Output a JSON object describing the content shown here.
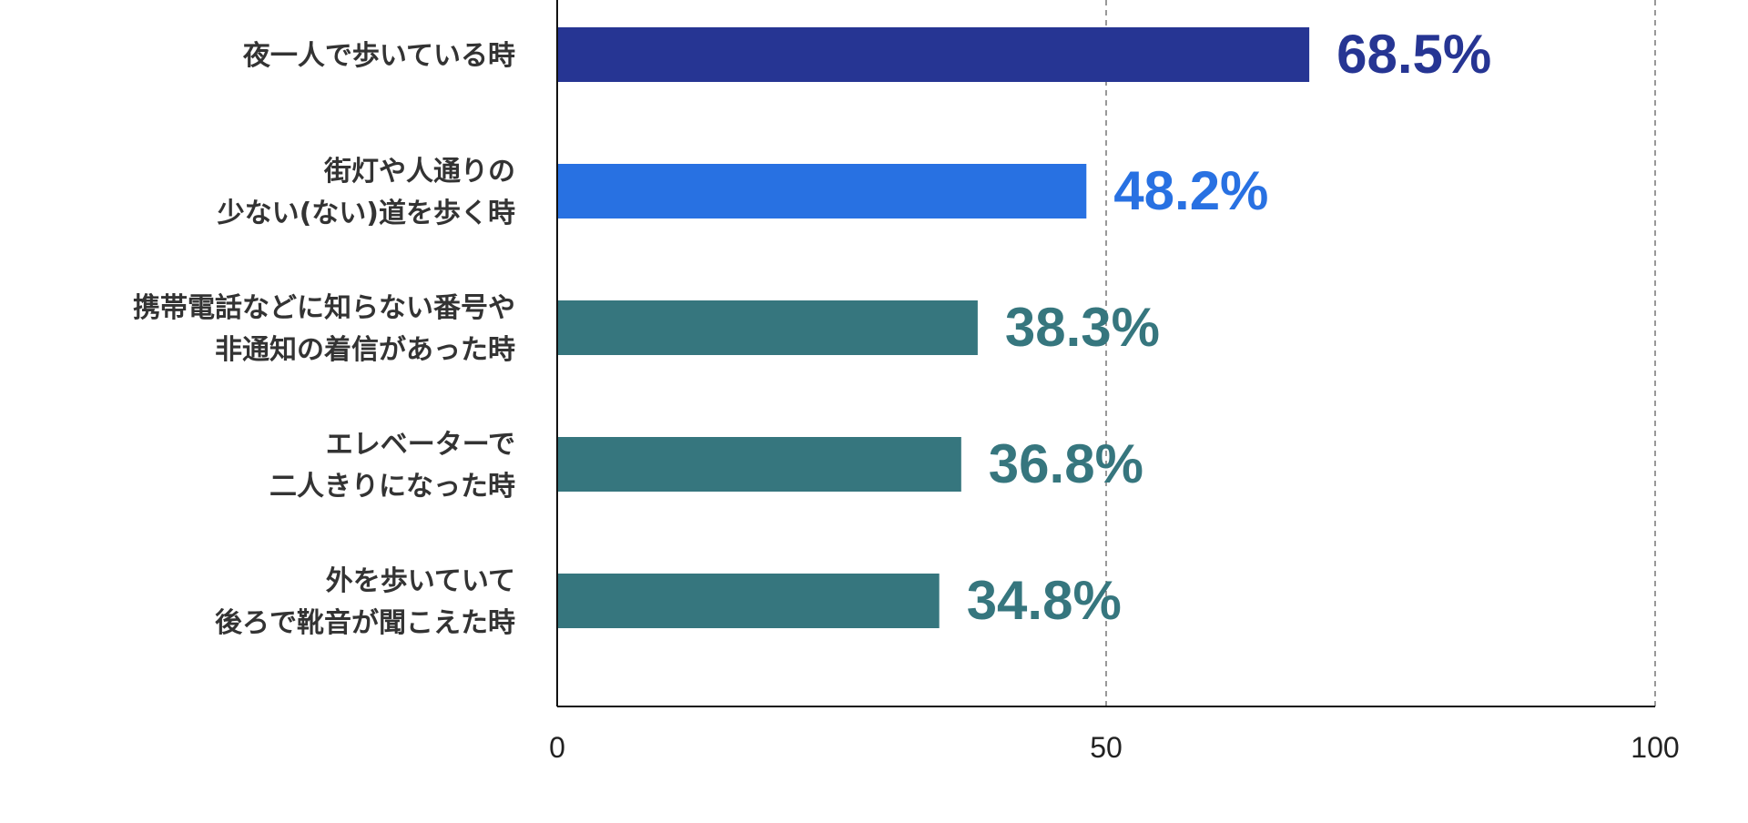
{
  "chart_data": {
    "type": "bar",
    "orientation": "horizontal",
    "categories": [
      [
        "夜一人で歩いている時"
      ],
      [
        "街灯や人通りの",
        "少ない(ない)道を歩く時"
      ],
      [
        "携帯電話などに知らない番号や",
        "非通知の着信があった時"
      ],
      [
        "エレベーターで",
        "二人きりになった時"
      ],
      [
        "外を歩いていて",
        "後ろで靴音が聞こえた時"
      ]
    ],
    "values": [
      68.5,
      48.2,
      38.3,
      36.8,
      34.8
    ],
    "data_labels": [
      "68.5%",
      "48.2%",
      "38.3%",
      "36.8%",
      "34.8%"
    ],
    "colors": [
      "#263593",
      "#2871e2",
      "#36767e",
      "#36767e",
      "#36767e"
    ],
    "xlim": [
      0,
      100
    ],
    "xticks": [
      0,
      50,
      100
    ],
    "xtick_labels": [
      "0",
      "50",
      "100"
    ],
    "grid": "vertical dashed at 50 and 100",
    "title": "",
    "xlabel": "",
    "ylabel": ""
  }
}
